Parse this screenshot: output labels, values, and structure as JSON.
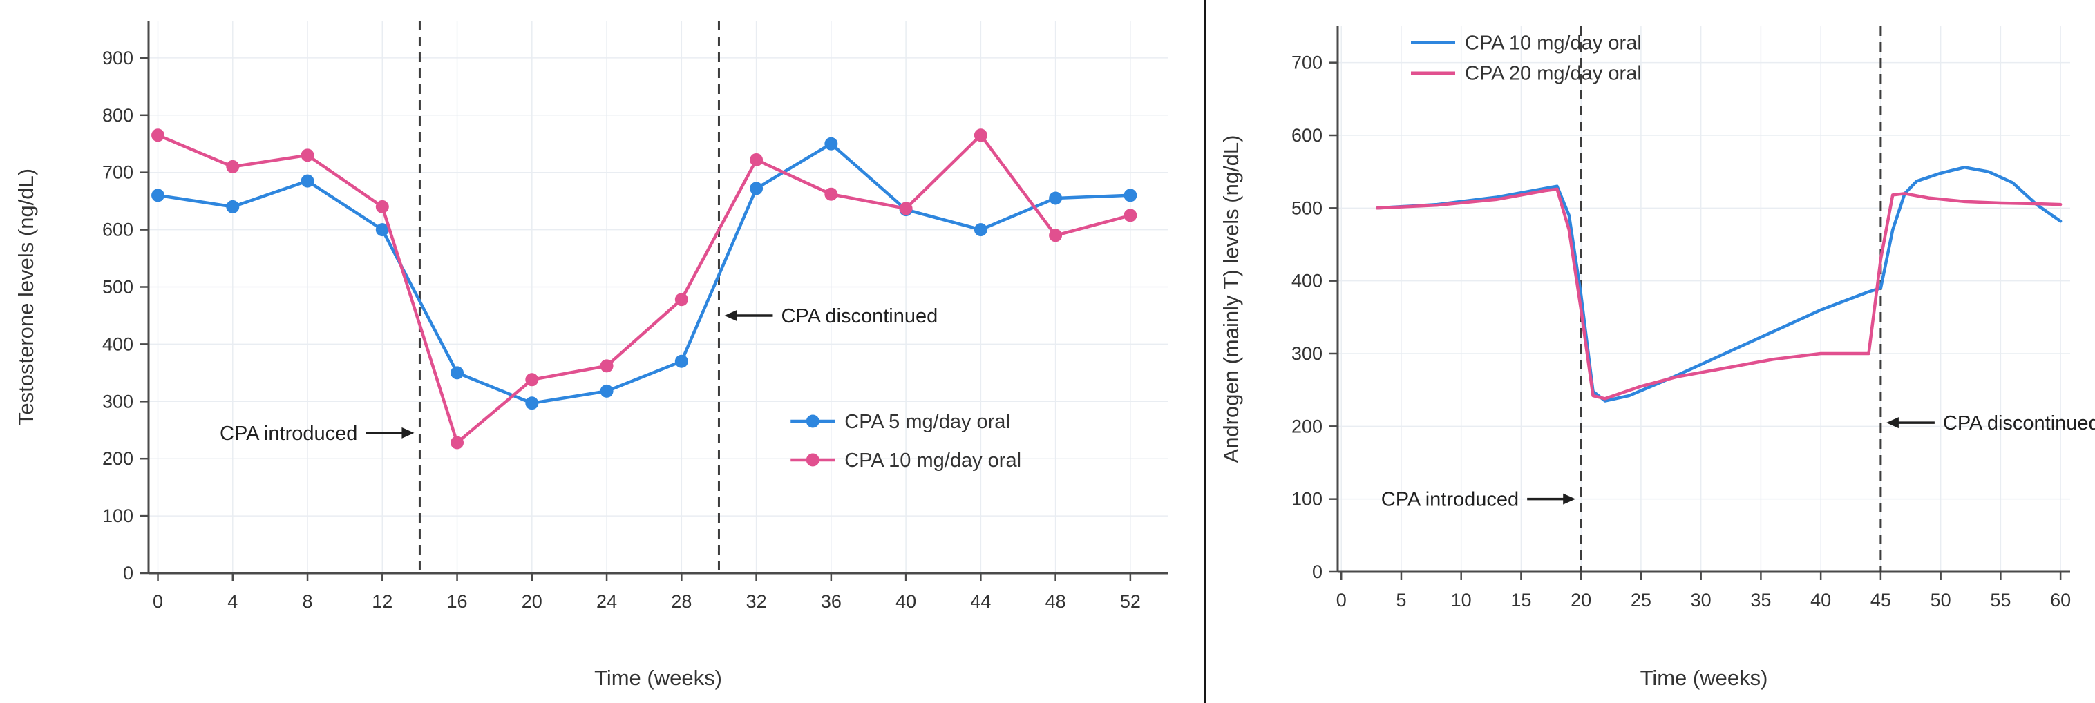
{
  "colors": {
    "blue_series": "#2e86de",
    "pink_series": "#e1508f",
    "grid": "#e9edf2",
    "axis": "#4a4a4a",
    "text": "#333333",
    "dashed_line": "#3c3c3c",
    "annotation": "#1f1f1f",
    "divider": "#161616"
  },
  "chart_data": [
    {
      "type": "line",
      "title": "",
      "xlabel": "Time (weeks)",
      "ylabel": "Testosterone levels (ng/dL)",
      "xlim": [
        -0.5,
        54
      ],
      "ylim": [
        0,
        965
      ],
      "xticks": [
        0,
        4,
        8,
        12,
        16,
        20,
        24,
        28,
        32,
        36,
        40,
        44,
        48,
        52
      ],
      "yticks": [
        0,
        100,
        200,
        300,
        400,
        500,
        600,
        700,
        800,
        900
      ],
      "grid": true,
      "x": [
        0,
        4,
        8,
        12,
        16,
        20,
        24,
        28,
        32,
        36,
        40,
        44,
        48,
        52
      ],
      "series": [
        {
          "name": "CPA 5 mg/day oral",
          "color": "#2e86de",
          "marker": true,
          "values": [
            660,
            640,
            685,
            600,
            350,
            297,
            318,
            370,
            672,
            750,
            635,
            600,
            655,
            660
          ]
        },
        {
          "name": "CPA 10 mg/day oral",
          "color": "#e1508f",
          "marker": true,
          "values": [
            765,
            710,
            730,
            640,
            228,
            338,
            362,
            478,
            722,
            662,
            637,
            765,
            590,
            625
          ]
        }
      ],
      "annotations": [
        {
          "x": 14,
          "label": "CPA introduced",
          "side": "left",
          "label_y": 245
        },
        {
          "x": 30,
          "label": "CPA discontinued",
          "side": "right",
          "label_y": 450
        }
      ],
      "legend": {
        "fx": 0.63,
        "fy": 0.725
      }
    },
    {
      "type": "line",
      "title": "",
      "xlabel": "Time (weeks)",
      "ylabel": "Androgen (mainly T) levels (ng/dL)",
      "xlim": [
        -0.3,
        60.8
      ],
      "ylim": [
        0,
        750
      ],
      "xticks": [
        0,
        5,
        10,
        15,
        20,
        25,
        30,
        35,
        40,
        45,
        50,
        55,
        60
      ],
      "yticks": [
        0,
        100,
        200,
        300,
        400,
        500,
        600,
        700
      ],
      "grid": true,
      "series": [
        {
          "name": "CPA 10 mg/day oral",
          "color": "#2e86de",
          "marker": false,
          "x": [
            3,
            8,
            13,
            17,
            18,
            19,
            20,
            21,
            22,
            24,
            28,
            32,
            36,
            40,
            44,
            45,
            46,
            47,
            48,
            50,
            52,
            54,
            56,
            58,
            60
          ],
          "values": [
            500,
            505,
            515,
            527,
            530,
            490,
            380,
            248,
            235,
            242,
            270,
            300,
            330,
            360,
            385,
            390,
            470,
            520,
            537,
            548,
            556,
            550,
            535,
            505,
            482
          ]
        },
        {
          "name": "CPA 20 mg/day oral",
          "color": "#e1508f",
          "marker": false,
          "x": [
            3,
            8,
            13,
            17,
            18,
            19,
            20,
            21,
            22,
            25,
            28,
            32,
            36,
            40,
            44,
            45,
            46,
            47,
            49,
            52,
            55,
            58,
            60
          ],
          "values": [
            500,
            504,
            512,
            524,
            526,
            470,
            360,
            242,
            238,
            255,
            268,
            280,
            292,
            300,
            300,
            430,
            518,
            520,
            514,
            509,
            507,
            506,
            505
          ]
        }
      ],
      "annotations": [
        {
          "x": 20,
          "label": "CPA introduced",
          "side": "left",
          "label_y": 100
        },
        {
          "x": 45,
          "label": "CPA discontinued",
          "side": "right",
          "label_y": 205
        }
      ],
      "legend": {
        "fx": 0.1,
        "fy": 0.03
      }
    }
  ]
}
